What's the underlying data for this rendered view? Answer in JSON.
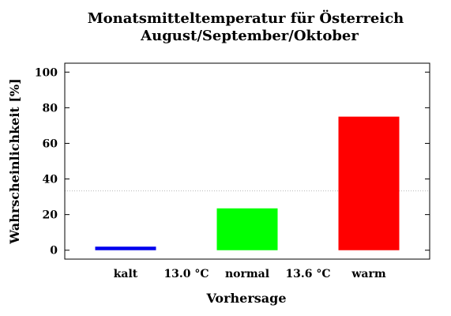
{
  "chart_data": {
    "type": "bar",
    "title": "Monatsmitteltemperatur für Österreich",
    "subtitle": "August/September/Oktober",
    "xlabel": "Vorhersage",
    "ylabel": "Wahrscheinlichkeit [%]",
    "ylim": [
      -5,
      105
    ],
    "yticks": [
      0,
      20,
      40,
      60,
      80,
      100
    ],
    "categories": [
      "kalt",
      "normal",
      "warm"
    ],
    "values": [
      2,
      23.5,
      75
    ],
    "colors": [
      "#0000ee",
      "#00ff00",
      "#ff0000"
    ],
    "threshold_labels": [
      "13.0 °C",
      "13.6 °C"
    ],
    "reference_line": 33.3,
    "grid": false,
    "legend": "none"
  }
}
